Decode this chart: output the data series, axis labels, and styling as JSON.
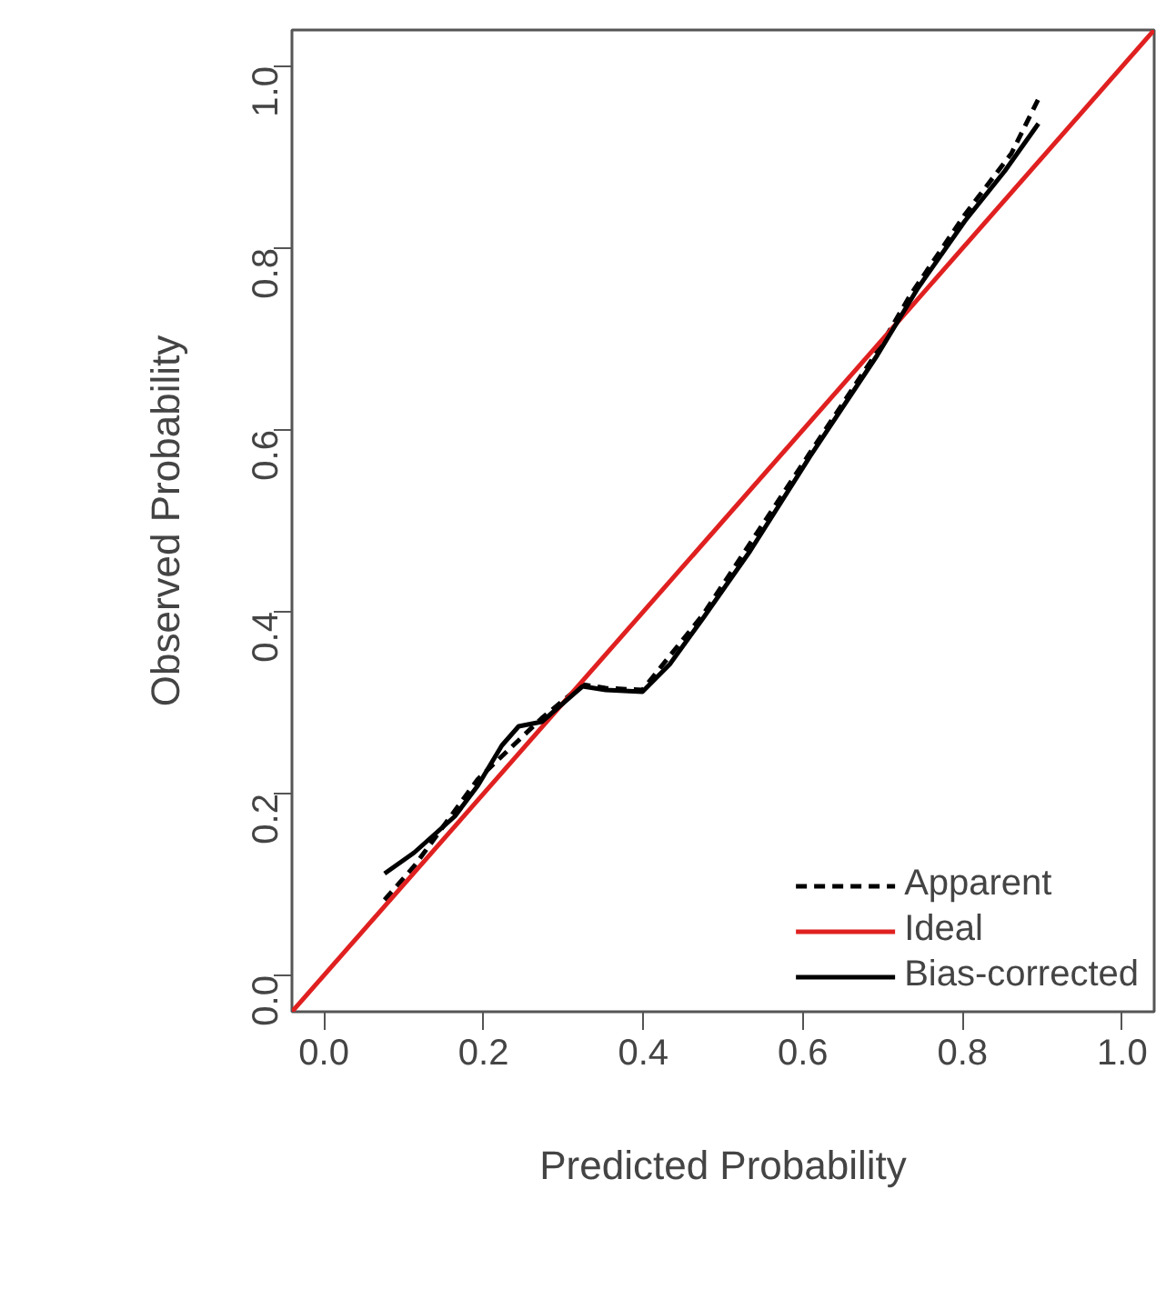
{
  "chart_data": {
    "type": "line",
    "xlabel": "Predicted Probability",
    "ylabel": "Observed Probability",
    "xlim": [
      -0.04,
      1.04
    ],
    "ylim": [
      -0.04,
      1.04
    ],
    "xticks": [
      {
        "value": 0,
        "label": "0.0"
      },
      {
        "value": 0.2,
        "label": "0.2"
      },
      {
        "value": 0.4,
        "label": "0.4"
      },
      {
        "value": 0.6,
        "label": "0.6"
      },
      {
        "value": 0.8,
        "label": "0.8"
      },
      {
        "value": 1,
        "label": "1.0"
      }
    ],
    "yticks": [
      {
        "value": 0,
        "label": "0.0"
      },
      {
        "value": 0.2,
        "label": "0.2"
      },
      {
        "value": 0.4,
        "label": "0.4"
      },
      {
        "value": 0.6,
        "label": "0.6"
      },
      {
        "value": 0.8,
        "label": "0.8"
      },
      {
        "value": 1,
        "label": "1.0"
      }
    ],
    "grid": false,
    "legend": "bottom right",
    "marker": "none",
    "series": [
      {
        "name": "Apparent",
        "color": "#000000",
        "line_style": "dashed",
        "x": [
          0.076,
          0.113,
          0.193,
          0.273,
          0.324,
          0.353,
          0.399,
          0.475,
          0.609,
          0.693,
          0.735,
          0.803,
          0.861,
          0.895
        ],
        "values": [
          0.083,
          0.12,
          0.216,
          0.283,
          0.32,
          0.316,
          0.314,
          0.397,
          0.575,
          0.686,
          0.749,
          0.837,
          0.904,
          0.964
        ]
      },
      {
        "name": "Ideal",
        "color": "#e02020",
        "line_style": "solid",
        "x": [
          -0.04,
          1.04
        ],
        "values": [
          -0.04,
          1.04
        ]
      },
      {
        "name": "Bias-corrected",
        "color": "#000000",
        "line_style": "solid",
        "x": [
          0.076,
          0.113,
          0.164,
          0.193,
          0.223,
          0.244,
          0.273,
          0.324,
          0.353,
          0.399,
          0.433,
          0.475,
          0.534,
          0.609,
          0.693,
          0.744,
          0.803,
          0.853,
          0.895
        ],
        "values": [
          0.112,
          0.135,
          0.175,
          0.209,
          0.253,
          0.274,
          0.279,
          0.318,
          0.314,
          0.312,
          0.342,
          0.393,
          0.467,
          0.571,
          0.682,
          0.756,
          0.83,
          0.885,
          0.937
        ]
      }
    ]
  }
}
